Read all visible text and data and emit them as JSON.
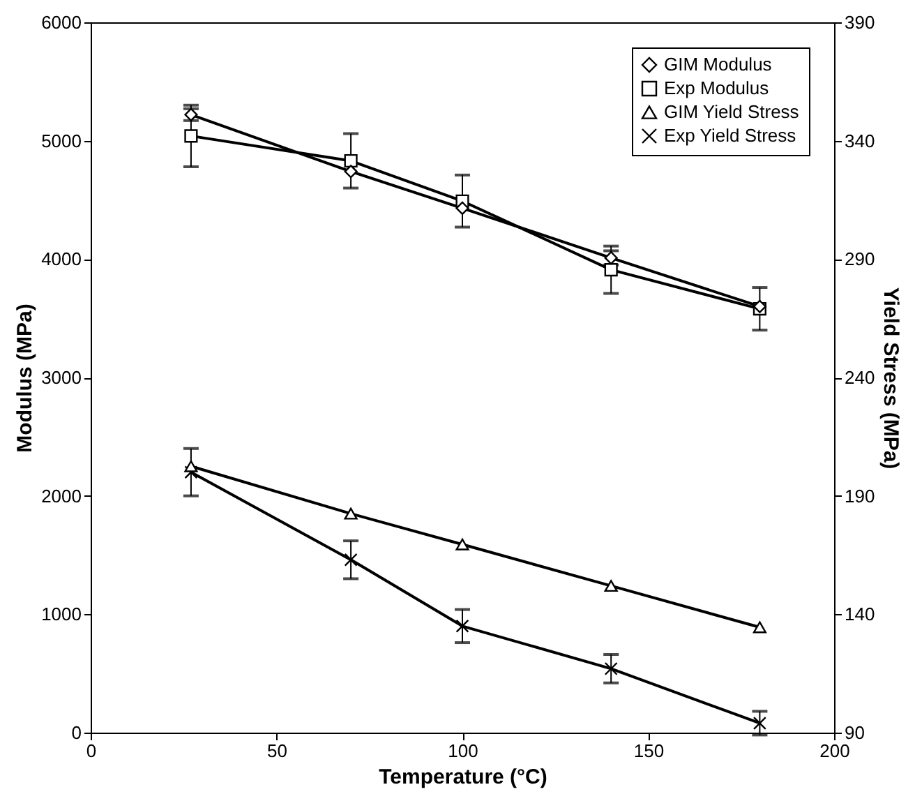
{
  "chart_data": {
    "type": "line",
    "xlabel": "Temperature (°C)",
    "ylabel": "Modulus (MPa)",
    "y2label": "Yield Stress (MPa)",
    "x": [
      27,
      70,
      100,
      140,
      180
    ],
    "series": [
      {
        "name": "GIM Modulus",
        "color": "#000000",
        "marker": "diamond",
        "axis": "y",
        "values": [
          5220,
          4740,
          4430,
          4010,
          3600
        ],
        "errors": [
          50,
          null,
          null,
          60,
          null
        ]
      },
      {
        "name": "Exp Modulus",
        "color": "#000000",
        "marker": "square",
        "axis": "y",
        "values": [
          5040,
          4830,
          4490,
          3910,
          3580
        ],
        "errors": [
          260,
          230,
          220,
          200,
          180
        ]
      },
      {
        "name": "GIM Yield Stress",
        "color": "#000000",
        "marker": "triangle",
        "axis": "y2",
        "values": [
          202.5,
          182.5,
          169.5,
          152,
          134.5
        ]
      },
      {
        "name": "Exp Yield Stress",
        "color": "#000000",
        "marker": "cross",
        "axis": "y2",
        "values": [
          200,
          163,
          135,
          117,
          94
        ],
        "errors": [
          10,
          8,
          7,
          6,
          5
        ]
      }
    ],
    "xlim": [
      0,
      200
    ],
    "xticks": [
      0,
      50,
      100,
      150,
      200
    ],
    "ylim": [
      0,
      6000
    ],
    "yticks": [
      0,
      1000,
      2000,
      3000,
      4000,
      5000,
      6000
    ],
    "y2lim": [
      90,
      390
    ],
    "y2ticks": [
      90,
      140,
      190,
      240,
      290,
      340,
      390
    ],
    "grid": false,
    "legend": "top right",
    "line_style": "solid"
  }
}
